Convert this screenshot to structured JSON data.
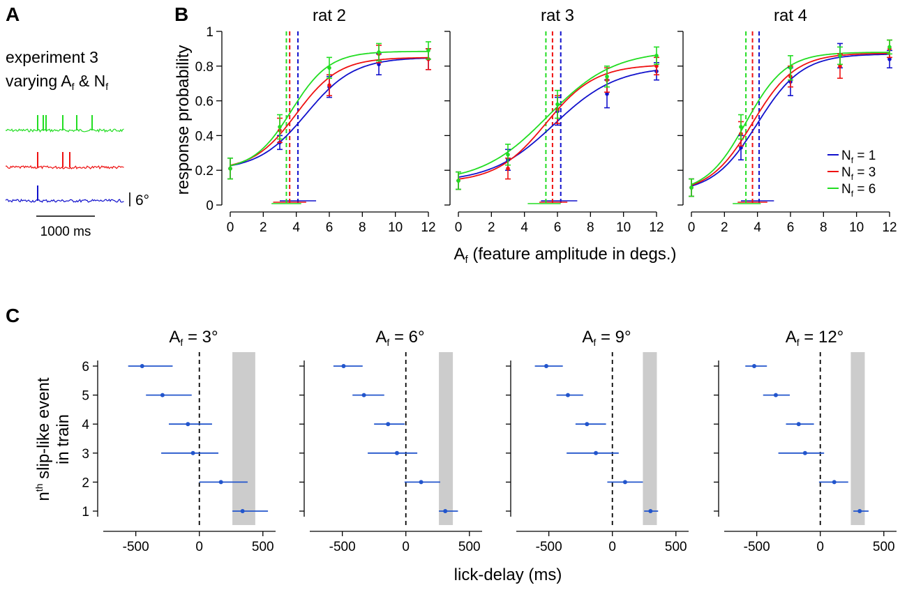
{
  "figure": {
    "panel_labels": [
      "A",
      "B",
      "C"
    ],
    "panel_a": {
      "text_line1": "experiment 3",
      "text_line2_prefix": "varying A",
      "text_line2_sub1": "f",
      "text_line2_mid": " & N",
      "text_line2_sub2": "f",
      "amp_scale_label": "6°",
      "time_scale_label": "1000 ms",
      "traces": [
        {
          "name": "Nf = 6",
          "color": "#22dd22",
          "spike_count": 6
        },
        {
          "name": "Nf = 3",
          "color": "#ee1111",
          "spike_count": 3
        },
        {
          "name": "Nf = 1",
          "color": "#1111cc",
          "spike_count": 1
        }
      ]
    }
  },
  "chart_data": [
    {
      "type": "line",
      "panel": "B",
      "shared_xlabel_prefix": "A",
      "shared_xlabel_sub": "f",
      "shared_xlabel_rest": " (feature amplitude in degs.)",
      "ylabel": "response probability",
      "x_ticks": [
        0,
        2,
        4,
        6,
        8,
        10,
        12
      ],
      "y_ticks": [
        0,
        0.2,
        0.4,
        0.6,
        0.8,
        1
      ],
      "y_tick_labels": [
        "0",
        "0.2",
        "0.4",
        "0.6",
        "0.8",
        "1"
      ],
      "xlim": [
        0,
        12
      ],
      "ylim": [
        0,
        1
      ],
      "x": [
        0,
        3,
        6,
        9,
        12
      ],
      "legend": [
        {
          "prefix": "N",
          "sub": "f",
          "rest": " = 1",
          "color": "#1111cc"
        },
        {
          "prefix": "N",
          "sub": "f",
          "rest": " = 3",
          "color": "#ee1111"
        },
        {
          "prefix": "N",
          "sub": "f",
          "rest": " = 6",
          "color": "#22dd22"
        }
      ],
      "legend_position": "bottom-right of rat 4",
      "subplots": [
        {
          "title": "rat 2",
          "series": [
            {
              "name": "Nf = 1",
              "color": "#1111cc",
              "values": [
                0.21,
                0.36,
                0.68,
                0.81,
                0.84
              ],
              "err": [
                0.06,
                0.04,
                0.06,
                0.06,
                0.06
              ],
              "threshold": 4.1,
              "thr_ci": [
                3.0,
                5.2
              ],
              "fit": {
                "base": 0.2,
                "top": 0.85,
                "mid": 4.6,
                "slope": 1.45
              }
            },
            {
              "name": "Nf = 3",
              "color": "#ee1111",
              "values": [
                0.21,
                0.43,
                0.69,
                0.87,
                0.84
              ],
              "err": [
                0.06,
                0.07,
                0.06,
                0.05,
                0.06
              ],
              "threshold": 3.6,
              "thr_ci": [
                2.6,
                4.6
              ],
              "fit": {
                "base": 0.2,
                "top": 0.85,
                "mid": 4.0,
                "slope": 1.3
              }
            },
            {
              "name": "Nf = 6",
              "color": "#22dd22",
              "values": [
                0.21,
                0.45,
                0.79,
                0.88,
                0.89
              ],
              "err": [
                0.06,
                0.07,
                0.06,
                0.05,
                0.05
              ],
              "threshold": 3.4,
              "thr_ci": [
                2.5,
                4.3
              ],
              "fit": {
                "base": 0.2,
                "top": 0.885,
                "mid": 3.7,
                "slope": 1.15
              }
            }
          ]
        },
        {
          "title": "rat 3",
          "series": [
            {
              "name": "Nf = 1",
              "color": "#1111cc",
              "values": [
                0.14,
                0.26,
                0.54,
                0.64,
                0.77
              ],
              "err": [
                0.05,
                0.06,
                0.08,
                0.08,
                0.05
              ],
              "threshold": 6.2,
              "thr_ci": [
                5.0,
                7.2
              ],
              "fit": {
                "base": 0.13,
                "top": 0.8,
                "mid": 5.8,
                "slope": 1.9
              }
            },
            {
              "name": "Nf = 3",
              "color": "#ee1111",
              "values": [
                0.14,
                0.21,
                0.55,
                0.72,
                0.8
              ],
              "err": [
                0.05,
                0.06,
                0.08,
                0.07,
                0.05
              ],
              "threshold": 5.7,
              "thr_ci": [
                4.9,
                6.6
              ],
              "fit": {
                "base": 0.13,
                "top": 0.81,
                "mid": 5.3,
                "slope": 1.5
              }
            },
            {
              "name": "Nf = 6",
              "color": "#22dd22",
              "values": [
                0.14,
                0.29,
                0.58,
                0.74,
                0.86
              ],
              "err": [
                0.05,
                0.06,
                0.08,
                0.06,
                0.05
              ],
              "threshold": 5.3,
              "thr_ci": [
                4.2,
                6.2
              ],
              "fit": {
                "base": 0.13,
                "top": 0.89,
                "mid": 5.4,
                "slope": 2.0
              }
            }
          ]
        },
        {
          "title": "rat 4",
          "series": [
            {
              "name": "Nf = 1",
              "color": "#1111cc",
              "values": [
                0.1,
                0.33,
                0.71,
                0.86,
                0.84
              ],
              "err": [
                0.05,
                0.07,
                0.08,
                0.07,
                0.05
              ],
              "threshold": 4.1,
              "thr_ci": [
                3.0,
                5.0
              ],
              "fit": {
                "base": 0.07,
                "top": 0.87,
                "mid": 4.0,
                "slope": 1.35
              }
            },
            {
              "name": "Nf = 3",
              "color": "#ee1111",
              "values": [
                0.1,
                0.41,
                0.74,
                0.8,
                0.9
              ],
              "err": [
                0.05,
                0.07,
                0.06,
                0.07,
                0.05
              ],
              "threshold": 3.7,
              "thr_ci": [
                2.8,
                4.6
              ],
              "fit": {
                "base": 0.07,
                "top": 0.875,
                "mid": 3.7,
                "slope": 1.3
              }
            },
            {
              "name": "Nf = 6",
              "color": "#22dd22",
              "values": [
                0.1,
                0.45,
                0.79,
                0.86,
                0.91
              ],
              "err": [
                0.05,
                0.07,
                0.07,
                0.05,
                0.04
              ],
              "threshold": 3.3,
              "thr_ci": [
                2.5,
                4.2
              ],
              "fit": {
                "base": 0.07,
                "top": 0.88,
                "mid": 3.3,
                "slope": 1.2
              }
            }
          ]
        }
      ]
    },
    {
      "type": "scatter",
      "panel": "C",
      "xlabel": "lick-delay (ms)",
      "ylabel_n": "n",
      "ylabel_sup": "th",
      "ylabel_line1_rest": " slip-like event",
      "ylabel_line2": "in train",
      "xlim": [
        -800,
        600
      ],
      "x_ticks": [
        -500,
        0,
        500
      ],
      "x_tick_labels": [
        "-500",
        "0",
        "500"
      ],
      "y_ticks": [
        1,
        2,
        3,
        4,
        5,
        6
      ],
      "reference_line_x": 0,
      "color": "#2255cc",
      "subplots": [
        {
          "title_prefix": "A",
          "title_sub": "f",
          "title_rest": " = 3°",
          "shade": [
            260,
            440
          ],
          "points": [
            {
              "n": 6,
              "x": -450,
              "lo": -560,
              "hi": -210
            },
            {
              "n": 5,
              "x": -290,
              "lo": -420,
              "hi": -60
            },
            {
              "n": 4,
              "x": -90,
              "lo": -240,
              "hi": 100
            },
            {
              "n": 3,
              "x": -50,
              "lo": -300,
              "hi": 150
            },
            {
              "n": 2,
              "x": 170,
              "lo": 0,
              "hi": 380
            },
            {
              "n": 1,
              "x": 340,
              "lo": 260,
              "hi": 540
            }
          ]
        },
        {
          "title_prefix": "A",
          "title_sub": "f",
          "title_rest": " = 6°",
          "shade": [
            260,
            370
          ],
          "points": [
            {
              "n": 6,
              "x": -490,
              "lo": -570,
              "hi": -340
            },
            {
              "n": 5,
              "x": -330,
              "lo": -420,
              "hi": -170
            },
            {
              "n": 4,
              "x": -140,
              "lo": -250,
              "hi": -10
            },
            {
              "n": 3,
              "x": -70,
              "lo": -300,
              "hi": 90
            },
            {
              "n": 2,
              "x": 120,
              "lo": -10,
              "hi": 270
            },
            {
              "n": 1,
              "x": 310,
              "lo": 260,
              "hi": 410
            }
          ]
        },
        {
          "title_prefix": "A",
          "title_sub": "f",
          "title_rest": " = 9°",
          "shade": [
            240,
            350
          ],
          "points": [
            {
              "n": 6,
              "x": -520,
              "lo": -610,
              "hi": -390
            },
            {
              "n": 5,
              "x": -350,
              "lo": -440,
              "hi": -230
            },
            {
              "n": 4,
              "x": -200,
              "lo": -290,
              "hi": -50
            },
            {
              "n": 3,
              "x": -130,
              "lo": -360,
              "hi": 50
            },
            {
              "n": 2,
              "x": 100,
              "lo": -40,
              "hi": 240
            },
            {
              "n": 1,
              "x": 300,
              "lo": 250,
              "hi": 360
            }
          ]
        },
        {
          "title_prefix": "A",
          "title_sub": "f",
          "title_rest": " = 12°",
          "shade": [
            240,
            350
          ],
          "points": [
            {
              "n": 6,
              "x": -520,
              "lo": -590,
              "hi": -420
            },
            {
              "n": 5,
              "x": -350,
              "lo": -450,
              "hi": -240
            },
            {
              "n": 4,
              "x": -170,
              "lo": -270,
              "hi": -50
            },
            {
              "n": 3,
              "x": -120,
              "lo": -330,
              "hi": 30
            },
            {
              "n": 2,
              "x": 110,
              "lo": -10,
              "hi": 220
            },
            {
              "n": 1,
              "x": 310,
              "lo": 260,
              "hi": 380
            }
          ]
        }
      ]
    }
  ]
}
